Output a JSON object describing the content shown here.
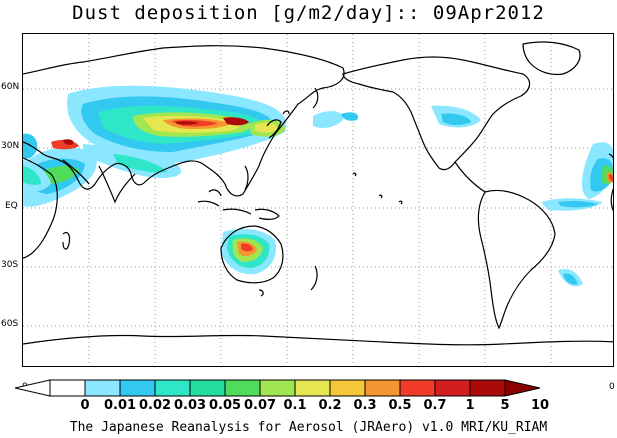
{
  "title": "Dust deposition [g/m2/day]:: 09Apr2012",
  "credit": "The Japanese Reanalysis for Aerosol (JRAero) v1.0 MRI/KU_RIAM",
  "lat_labels": [
    "60N",
    "30N",
    "EQ",
    "30S",
    "60S"
  ],
  "axis_zero_left": "0",
  "axis_zero_right": "0",
  "colorbar": {
    "labels": [
      "0",
      "0.01",
      "0.02",
      "0.03",
      "0.05",
      "0.07",
      "0.1",
      "0.2",
      "0.3",
      "0.5",
      "0.7",
      "1",
      "5",
      "10"
    ],
    "colors": [
      "#ffffff",
      "#ffffff",
      "#8be7ff",
      "#32c8f0",
      "#2fe6c8",
      "#22dca0",
      "#4fdc5a",
      "#a0e650",
      "#e6e650",
      "#f5c83c",
      "#f59632",
      "#f03c28",
      "#d21e1e",
      "#aa0a0a",
      "#8c0000"
    ]
  },
  "map": {
    "projection": "Cylindrical equidistant, centered on 180",
    "lon_range": [
      0,
      360
    ],
    "lat_range": [
      -90,
      90
    ],
    "gridlines": "dotted",
    "dust_colors": {
      "light": "#8be7ff",
      "cyan": "#32c8f0",
      "teal": "#2fe6c8",
      "green": "#4fdc5a",
      "yellowgreen": "#a0e650",
      "yellow": "#e6e650",
      "orange": "#f59632",
      "red": "#f03c28",
      "darkred": "#aa0a0a"
    }
  }
}
